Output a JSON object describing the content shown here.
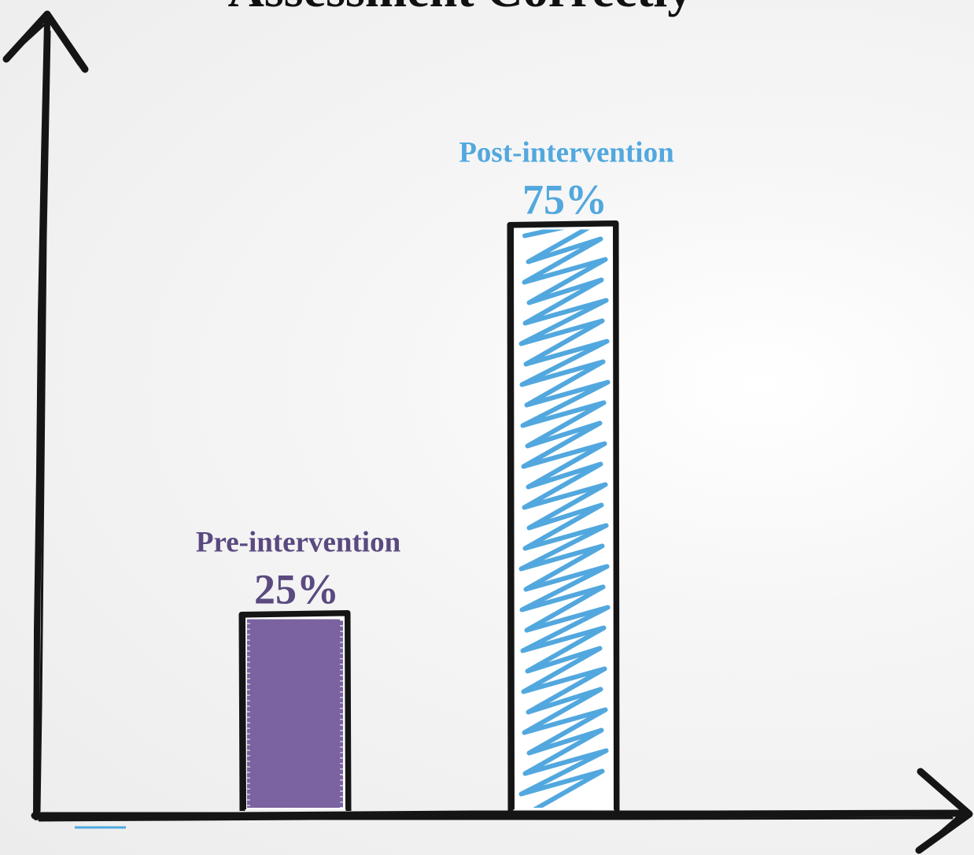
{
  "chart_data": {
    "type": "bar",
    "title": "Assessment Correctly",
    "categories": [
      "Pre-intervention",
      "Post-intervention"
    ],
    "values": [
      25,
      75
    ],
    "value_labels": [
      "25%",
      "75%"
    ],
    "ylim": [
      0,
      100
    ],
    "xlabel": "",
    "ylabel": "",
    "grid": false,
    "colors": [
      "#7a63a0",
      "#52a8de"
    ],
    "label_colors": [
      "#5a4a80",
      "#52a8de"
    ]
  }
}
